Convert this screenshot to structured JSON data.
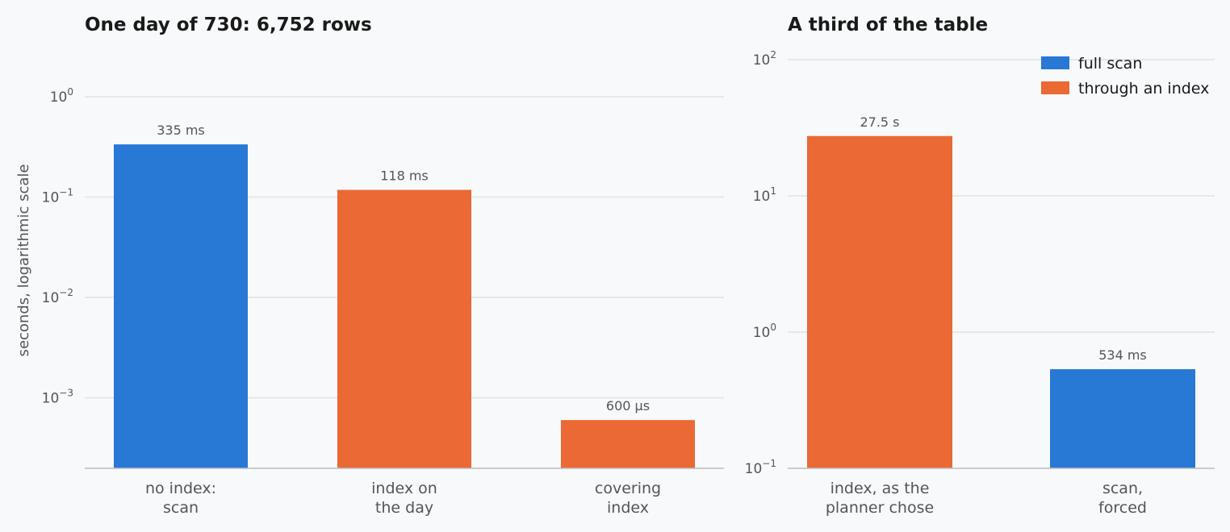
{
  "colors": {
    "full_scan": "#2878d6",
    "index": "#ea6935"
  },
  "legend": [
    {
      "label": "full scan",
      "color": "#2878d6"
    },
    {
      "label": "through an index",
      "color": "#ea6935"
    }
  ],
  "y_axis_label": "seconds, logarithmic scale",
  "chart_data": [
    {
      "type": "bar",
      "title": "One day of 730: 6,752 rows",
      "y_scale": "log",
      "ylim": [
        0.0002,
        3.5
      ],
      "y_ticks": [
        {
          "base": "10",
          "exp": "0"
        },
        {
          "base": "10",
          "exp": "−1"
        },
        {
          "base": "10",
          "exp": "−2"
        },
        {
          "base": "10",
          "exp": "−3"
        }
      ],
      "y_tick_values": [
        1,
        0.1,
        0.01,
        0.001
      ],
      "categories": [
        [
          "no index:",
          "scan"
        ],
        [
          "index on",
          "the day"
        ],
        [
          "covering",
          "index"
        ]
      ],
      "values": [
        0.335,
        0.118,
        0.0006
      ],
      "value_labels": [
        "335 ms",
        "118 ms",
        "600 µs"
      ],
      "series_type": [
        "full scan",
        "index",
        "index"
      ]
    },
    {
      "type": "bar",
      "title": "A third of the table",
      "y_scale": "log",
      "ylim": [
        0.1,
        180
      ],
      "y_ticks": [
        {
          "base": "10",
          "exp": "2"
        },
        {
          "base": "10",
          "exp": "1"
        },
        {
          "base": "10",
          "exp": "0"
        },
        {
          "base": "10",
          "exp": "−1"
        }
      ],
      "y_tick_values": [
        100,
        10,
        1,
        0.1
      ],
      "categories": [
        [
          "index, as the",
          "planner chose"
        ],
        [
          "scan,",
          "forced"
        ]
      ],
      "values": [
        27.5,
        0.534
      ],
      "value_labels": [
        "27.5 s",
        "534 ms"
      ],
      "series_type": [
        "index",
        "full scan"
      ]
    }
  ]
}
